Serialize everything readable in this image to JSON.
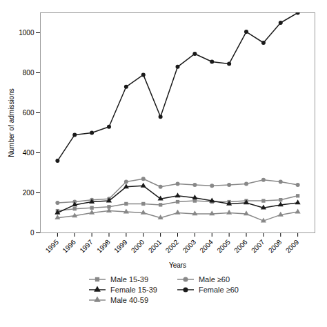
{
  "chart_data": {
    "type": "line",
    "xlabel": "Years",
    "ylabel": "Number of admissions",
    "x": [
      1995,
      1996,
      1997,
      1998,
      1999,
      2000,
      2001,
      2002,
      2003,
      2004,
      2005,
      2006,
      2007,
      2008,
      2009
    ],
    "series": [
      {
        "name": "Male 15-39",
        "color": "#888888",
        "marker": "square",
        "values": [
          110,
          120,
          125,
          130,
          145,
          145,
          140,
          155,
          160,
          155,
          155,
          160,
          160,
          165,
          185
        ]
      },
      {
        "name": "Male ≥60",
        "color": "#888888",
        "marker": "circle",
        "values": [
          150,
          155,
          165,
          170,
          255,
          270,
          230,
          245,
          240,
          235,
          240,
          245,
          265,
          255,
          240
        ]
      },
      {
        "name": "Female 15-39",
        "color": "#1a1a1a",
        "marker": "triangle",
        "values": [
          100,
          140,
          155,
          160,
          230,
          235,
          170,
          185,
          175,
          160,
          145,
          150,
          125,
          140,
          150
        ]
      },
      {
        "name": "Female ≥60",
        "color": "#1a1a1a",
        "marker": "circle",
        "values": [
          360,
          490,
          500,
          530,
          730,
          790,
          580,
          830,
          895,
          855,
          845,
          1005,
          950,
          1050,
          1100
        ]
      },
      {
        "name": "Male 40-59",
        "color": "#888888",
        "marker": "triangle",
        "values": [
          75,
          85,
          100,
          110,
          105,
          100,
          75,
          100,
          95,
          95,
          100,
          95,
          60,
          90,
          105
        ]
      }
    ],
    "xlim": [
      1994,
      2010
    ],
    "xticks": [
      1995,
      1996,
      1997,
      1998,
      1999,
      2000,
      2001,
      2002,
      2003,
      2004,
      2005,
      2006,
      2007,
      2008,
      2009
    ],
    "ylim": [
      0,
      1100
    ],
    "yticks": [
      0,
      200,
      400,
      600,
      800,
      1000
    ],
    "grid": false,
    "legend": "bottom"
  }
}
